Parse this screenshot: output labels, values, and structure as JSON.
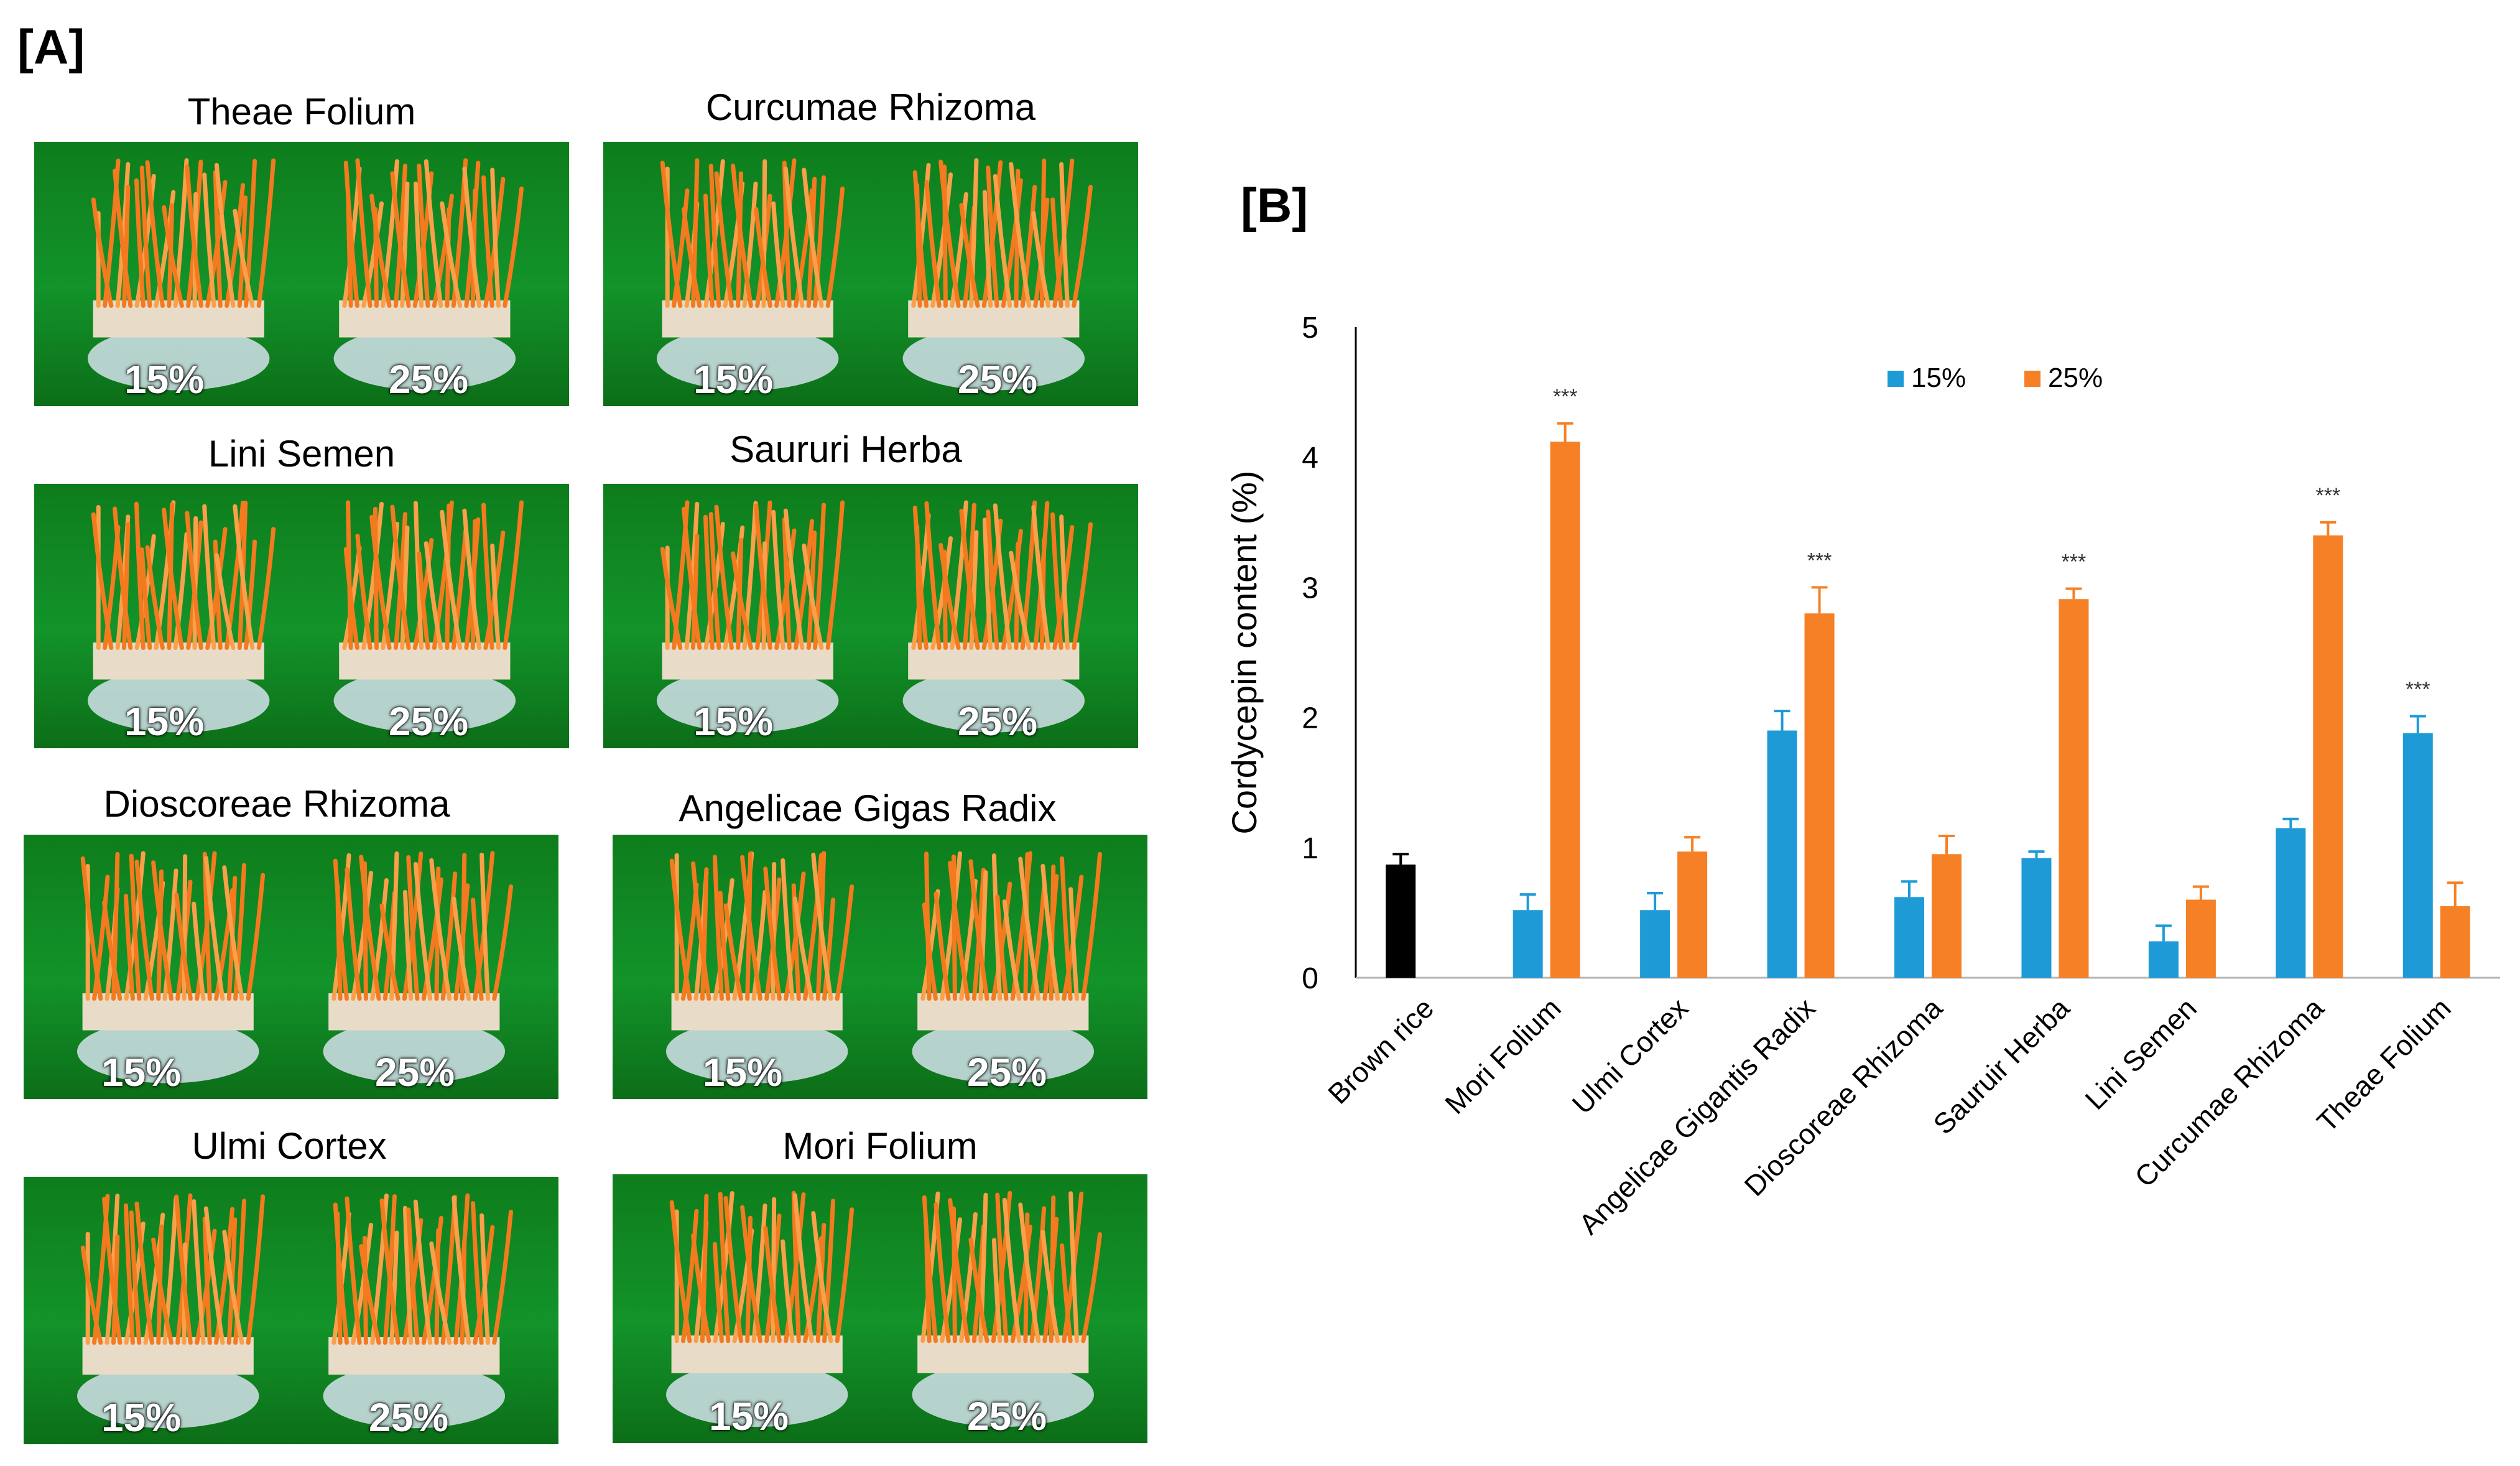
{
  "panel_a": {
    "label": "[A]",
    "photos": [
      {
        "title": "Theae Folium",
        "left_label": "15%",
        "right_label": "25%"
      },
      {
        "title": "Curcumae Rhizoma",
        "left_label": "15%",
        "right_label": "25%"
      },
      {
        "title": "Lini Semen",
        "left_label": "15%",
        "right_label": "25%"
      },
      {
        "title": "Saururi Herba",
        "left_label": "15%",
        "right_label": "25%"
      },
      {
        "title": "Dioscoreae Rhizoma",
        "left_label": "15%",
        "right_label": "25%"
      },
      {
        "title": "Angelicae Gigas Radix",
        "left_label": "15%",
        "right_label": "25%"
      },
      {
        "title": "Ulmi Cortex",
        "left_label": "15%",
        "right_label": "25%"
      },
      {
        "title": "Mori Folium",
        "left_label": "15%",
        "right_label": "25%"
      }
    ]
  },
  "panel_b": {
    "label": "[B]"
  },
  "chart_data": {
    "type": "bar",
    "ylabel": "Cordycepin content (%)",
    "xlabel": "",
    "ylim": [
      0,
      5
    ],
    "yticks": [
      0,
      1,
      2,
      3,
      4,
      5
    ],
    "grid": false,
    "legend_position": "top-center",
    "categories": [
      "Brown rice",
      "Mori Folium",
      "Ulmi Cortex",
      "Angelicae Gigantis Radix",
      "Dioscoreae Rhizoma",
      "Sauruir Herba",
      "Lini Semen",
      "Curcumae Rhizoma",
      "Theae Folium"
    ],
    "control": {
      "name": "Brown rice",
      "value": 0.87,
      "error": 0.08,
      "color": "#000000"
    },
    "series": [
      {
        "name": "15%",
        "color": "#1e9bd7",
        "values": [
          null,
          0.52,
          0.52,
          1.9,
          0.62,
          0.92,
          0.28,
          1.15,
          1.88
        ],
        "errors": [
          null,
          0.12,
          0.13,
          0.15,
          0.12,
          0.05,
          0.12,
          0.07,
          0.13
        ]
      },
      {
        "name": "25%",
        "color": "#f58025",
        "values": [
          null,
          4.12,
          0.97,
          2.8,
          0.95,
          2.91,
          0.6,
          3.4,
          0.55
        ],
        "errors": [
          null,
          0.14,
          0.11,
          0.2,
          0.14,
          0.08,
          0.1,
          0.1,
          0.18
        ]
      }
    ],
    "annotations": [
      {
        "category": "Mori Folium",
        "series": "25%",
        "text": "***"
      },
      {
        "category": "Angelicae Gigantis Radix",
        "series": "25%",
        "text": "***"
      },
      {
        "category": "Sauruir Herba",
        "series": "25%",
        "text": "***"
      },
      {
        "category": "Curcumae Rhizoma",
        "series": "25%",
        "text": "***"
      },
      {
        "category": "Theae Folium",
        "series": "15%",
        "text": "***"
      }
    ]
  }
}
